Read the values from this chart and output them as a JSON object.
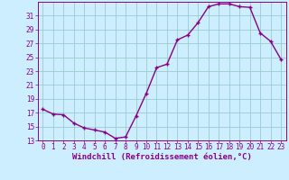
{
  "x": [
    0,
    1,
    2,
    3,
    4,
    5,
    6,
    7,
    8,
    9,
    10,
    11,
    12,
    13,
    14,
    15,
    16,
    17,
    18,
    19,
    20,
    21,
    22,
    23
  ],
  "y": [
    17.5,
    16.8,
    16.7,
    15.5,
    14.8,
    14.5,
    14.2,
    13.3,
    13.5,
    16.5,
    19.8,
    23.5,
    24.0,
    27.5,
    28.2,
    30.0,
    32.3,
    32.7,
    32.7,
    32.3,
    32.2,
    28.5,
    27.3,
    24.7
  ],
  "line_color": "#880088",
  "marker": "+",
  "marker_color": "#880088",
  "bg_color": "#cceeff",
  "grid_color": "#99cccc",
  "axis_color": "#880088",
  "tick_color": "#880088",
  "xlabel": "Windchill (Refroidissement éolien,°C)",
  "xlim": [
    -0.5,
    23.5
  ],
  "ylim": [
    13,
    33
  ],
  "yticks": [
    13,
    15,
    17,
    19,
    21,
    23,
    25,
    27,
    29,
    31
  ],
  "xticks": [
    0,
    1,
    2,
    3,
    4,
    5,
    6,
    7,
    8,
    9,
    10,
    11,
    12,
    13,
    14,
    15,
    16,
    17,
    18,
    19,
    20,
    21,
    22,
    23
  ],
  "xlabel_fontsize": 6.5,
  "tick_fontsize": 5.5,
  "line_width": 1.0
}
